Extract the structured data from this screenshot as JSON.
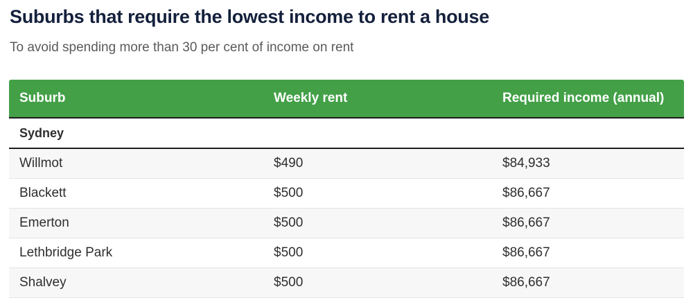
{
  "header": {
    "title": "Suburbs that require the lowest income to rent a house",
    "subtitle": "To avoid spending more than 30 per cent of income on rent"
  },
  "table": {
    "columns": [
      "Suburb",
      "Weekly rent",
      "Required income (annual)"
    ],
    "group": "Sydney",
    "rows": [
      {
        "suburb": "Willmot",
        "weekly_rent": "$490",
        "required_income": "$84,933"
      },
      {
        "suburb": "Blackett",
        "weekly_rent": "$500",
        "required_income": "$86,667"
      },
      {
        "suburb": "Emerton",
        "weekly_rent": "$500",
        "required_income": "$86,667"
      },
      {
        "suburb": "Lethbridge Park",
        "weekly_rent": "$500",
        "required_income": "$86,667"
      },
      {
        "suburb": "Shalvey",
        "weekly_rent": "$500",
        "required_income": "$86,667"
      }
    ]
  },
  "chart_data": {
    "type": "table",
    "title": "Suburbs that require the lowest income to rent a house",
    "subtitle": "To avoid spending more than 30 per cent of income on rent",
    "columns": [
      "Suburb",
      "Weekly rent",
      "Required income (annual)"
    ],
    "group_header": "Sydney",
    "rows": [
      [
        "Willmot",
        "$490",
        "$84,933"
      ],
      [
        "Blackett",
        "$500",
        "$86,667"
      ],
      [
        "Emerton",
        "$500",
        "$86,667"
      ],
      [
        "Lethbridge Park",
        "$500",
        "$86,667"
      ],
      [
        "Shalvey",
        "$500",
        "$86,667"
      ]
    ],
    "layout_hints": {
      "zebra_striping": true,
      "striped_rows_start": "Willmot",
      "header_style": "green-bar"
    }
  },
  "colors": {
    "header_bg": "#43a047",
    "header_text": "#ffffff",
    "title_text": "#14203c",
    "subtitle_text": "#5a5a5a",
    "body_text": "#2e2e2e",
    "row_alt_bg": "#f7f7f7",
    "divider": "#e4e4e4",
    "rule": "#1d1d1d"
  }
}
